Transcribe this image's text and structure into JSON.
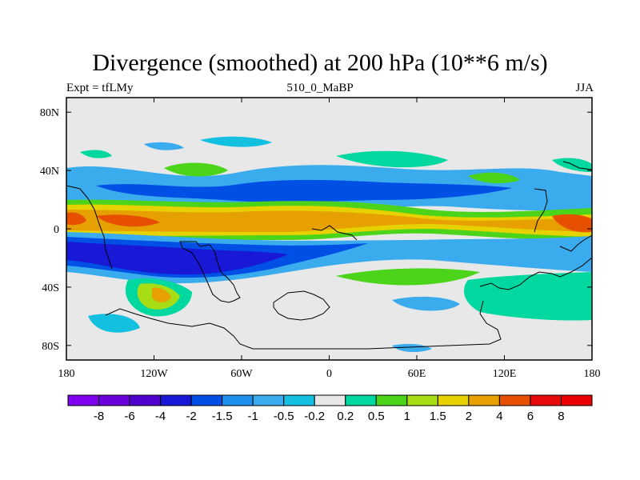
{
  "chart_data": {
    "type": "contour-map",
    "title": "Divergence (smoothed) at 200 hPa (10**6 m/s)",
    "subtitle_left": "Expt = tfLMy",
    "subtitle_center": "510_0_MaBP",
    "subtitle_right": "JJA",
    "x_ticks": [
      "180",
      "120W",
      "60W",
      "0",
      "60E",
      "120E",
      "180"
    ],
    "y_ticks": [
      "80N",
      "40N",
      "0",
      "40S",
      "80S"
    ],
    "xlim": [
      -180,
      180
    ],
    "ylim": [
      -90,
      90
    ],
    "colorbar": {
      "labels": [
        "-8",
        "-6",
        "-4",
        "-2",
        "-1.5",
        "-1",
        "-0.5",
        "-0.2",
        "0.2",
        "0.5",
        "1",
        "1.5",
        "2",
        "4",
        "6",
        "8"
      ],
      "colors": [
        "#7f00ee",
        "#6a00dc",
        "#5000cc",
        "#1818d6",
        "#0050e6",
        "#1e90ee",
        "#3aacee",
        "#14c0e0",
        "#e8e8e8",
        "#00d8a0",
        "#4cd41a",
        "#a8dc14",
        "#e6d200",
        "#e6a000",
        "#e65000",
        "#e60a0a",
        "#ea0000"
      ]
    }
  }
}
